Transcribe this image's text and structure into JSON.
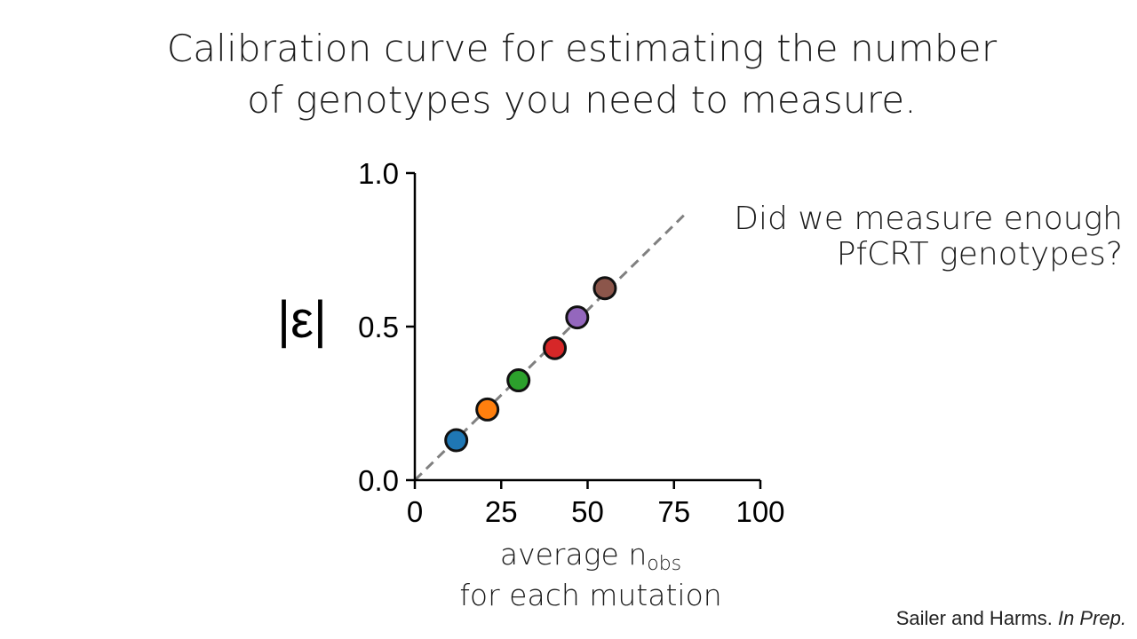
{
  "title_lines": [
    "Calibration curve for estimating the number",
    "of genotypes you need to measure."
  ],
  "question_lines": [
    "Did we measure enough",
    "PfCRT genotypes?"
  ],
  "credit": {
    "authors": "Sailer and Harms.",
    "status": "In Prep."
  },
  "colors": {
    "dashed_line": "#808080",
    "axis": "#000000",
    "point_outline": "#111111"
  },
  "chart_data": {
    "type": "scatter",
    "ylabel": "|ε|",
    "xlabel": {
      "main": "average n",
      "subscript": "obs",
      "line2": "for each mutation"
    },
    "xlim": [
      0,
      100
    ],
    "ylim": [
      0,
      1.0
    ],
    "xticks": [
      "0",
      "25",
      "50",
      "75",
      "100"
    ],
    "yticks": [
      "0.0",
      "0.5",
      "1.0"
    ],
    "grid": false,
    "reference_line": {
      "style": "dashed",
      "x": [
        0,
        79
      ],
      "y": [
        0,
        0.875
      ]
    },
    "points": [
      {
        "x": 12,
        "y": 0.13,
        "color": "#1f77b4"
      },
      {
        "x": 21,
        "y": 0.23,
        "color": "#ff7f0e"
      },
      {
        "x": 30,
        "y": 0.325,
        "color": "#2ca02c"
      },
      {
        "x": 40.5,
        "y": 0.43,
        "color": "#d62728"
      },
      {
        "x": 47,
        "y": 0.53,
        "color": "#9467bd"
      },
      {
        "x": 55,
        "y": 0.625,
        "color": "#8c564b"
      }
    ]
  }
}
